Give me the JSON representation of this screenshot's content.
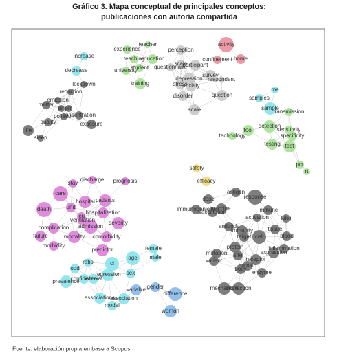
{
  "header": {
    "title_lines": [
      "Gráfico 3. Mapa conceptual de principales conceptos:",
      "publicaciones con autoría compartida"
    ]
  },
  "nodes": [
    {
      "label": "increase"
    },
    {
      "label": "decrease"
    },
    {
      "label": "lockdown"
    },
    {
      "label": "reduction"
    },
    {
      "label": "emission"
    },
    {
      "label": "matter"
    },
    {
      "label": "air"
    },
    {
      "label": "pm"
    },
    {
      "label": "concentration"
    },
    {
      "label": "pollution"
    },
    {
      "label": "quality"
    },
    {
      "label": "exposure"
    },
    {
      "label": "life"
    },
    {
      "label": "sleep"
    },
    {
      "label": "teacher"
    },
    {
      "label": "experience"
    },
    {
      "label": "education"
    },
    {
      "label": "teaching"
    },
    {
      "label": "student"
    },
    {
      "label": "university"
    },
    {
      "label": "training"
    },
    {
      "label": "perception"
    },
    {
      "label": "questionnaire"
    },
    {
      "label": "scale"
    },
    {
      "label": "participant"
    },
    {
      "label": "depression"
    },
    {
      "label": "anxiety"
    },
    {
      "label": "stress"
    },
    {
      "label": "survey"
    },
    {
      "label": "respondent"
    },
    {
      "label": "disorder"
    },
    {
      "label": "scale"
    },
    {
      "label": "question"
    },
    {
      "label": "activity"
    },
    {
      "label": "confinement"
    },
    {
      "label": "home"
    },
    {
      "label": "rna"
    },
    {
      "label": "samples"
    },
    {
      "label": "sample"
    },
    {
      "label": "transmission"
    },
    {
      "label": "detection"
    },
    {
      "label": "sensitivity"
    },
    {
      "label": "specificity"
    },
    {
      "label": "tool"
    },
    {
      "label": "technology"
    },
    {
      "label": "testing"
    },
    {
      "label": "test"
    },
    {
      "label": "pcr"
    },
    {
      "label": "rt"
    },
    {
      "label": "prognosis"
    },
    {
      "label": "discharge"
    },
    {
      "label": "stay"
    },
    {
      "label": "care"
    },
    {
      "label": "hospital"
    },
    {
      "label": "patients"
    },
    {
      "label": "death"
    },
    {
      "label": "unit"
    },
    {
      "label": "hospitalization"
    },
    {
      "label": "icu"
    },
    {
      "label": "ventilation"
    },
    {
      "label": "severity"
    },
    {
      "label": "complication"
    },
    {
      "label": "admission"
    },
    {
      "label": "comorbidity"
    },
    {
      "label": "mortality"
    },
    {
      "label": "failure"
    },
    {
      "label": "morbidity"
    },
    {
      "label": "predictor"
    },
    {
      "label": "female"
    },
    {
      "label": "male"
    },
    {
      "label": "age"
    },
    {
      "label": "ratio"
    },
    {
      "label": "ci"
    },
    {
      "label": "odd"
    },
    {
      "label": "sex"
    },
    {
      "label": "regression"
    },
    {
      "label": "confidence"
    },
    {
      "label": "interval"
    },
    {
      "label": "prevalence"
    },
    {
      "label": "variable"
    },
    {
      "label": "gender"
    },
    {
      "label": "association"
    },
    {
      "label": "associations"
    },
    {
      "label": "model"
    },
    {
      "label": "difference"
    },
    {
      "label": "woman"
    },
    {
      "label": "safety"
    },
    {
      "label": "efficacy"
    },
    {
      "label": "antigen"
    },
    {
      "label": "response"
    },
    {
      "label": "dose"
    },
    {
      "label": "immunogenicity"
    },
    {
      "label": "vaccine"
    },
    {
      "label": "vaccination"
    },
    {
      "label": "immune"
    },
    {
      "label": "lung"
    },
    {
      "label": "antibody"
    },
    {
      "label": "activation"
    },
    {
      "label": "immunity"
    },
    {
      "label": "tissue"
    },
    {
      "label": "target"
    },
    {
      "label": "cell"
    },
    {
      "label": "blood"
    },
    {
      "label": "protein"
    },
    {
      "label": "expression"
    },
    {
      "label": "inflammation"
    },
    {
      "label": "mutation"
    },
    {
      "label": "site"
    },
    {
      "label": "receptor"
    },
    {
      "label": "variant"
    },
    {
      "label": "domain"
    },
    {
      "label": "body"
    },
    {
      "label": "enzyme"
    },
    {
      "label": "mechanism"
    },
    {
      "label": "interaction"
    }
  ],
  "source": "Fuente: elaboración propia en base a Scopus"
}
